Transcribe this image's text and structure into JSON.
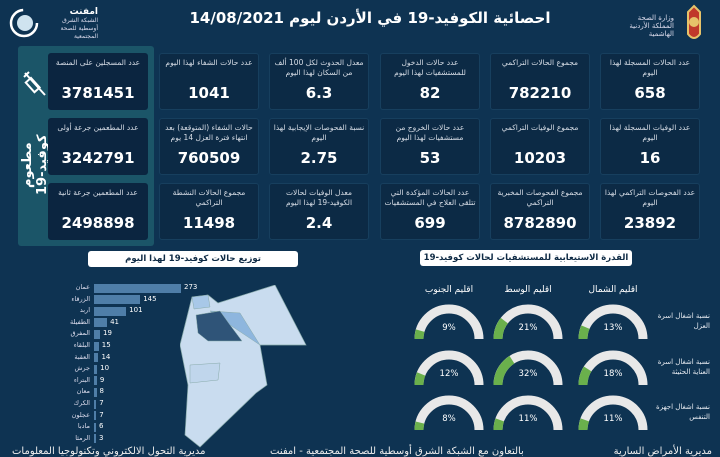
{
  "header": {
    "title": "احصائية الكوفيد-19 في الأردن ليوم",
    "date": "14/08/2021",
    "left_logo": {
      "name": "امفنت",
      "sub": "الشبكة الشرق أوسطية للصحة المجتمعية"
    },
    "right_logo": {
      "line1": "وزارة الصحة",
      "line2": "المملكة الأردنية الهاشمية"
    }
  },
  "vaccine": {
    "title": "مطعوم كوفيد-19",
    "icon": "syringe-icon",
    "cards": [
      {
        "label": "عدد المسجلين على المنصة",
        "value": "3781451"
      },
      {
        "label": "عدد المطعمين جرعة أولى",
        "value": "3242791"
      },
      {
        "label": "عدد المطعمين جرعة ثانية",
        "value": "2498898"
      }
    ]
  },
  "stats": [
    {
      "label": "عدد الحالات المسجلة لهذا اليوم",
      "value": "658"
    },
    {
      "label": "مجموع الحالات التراكمي",
      "value": "782210"
    },
    {
      "label": "عدد حالات الدخول للمستشفيات لهذا اليوم",
      "value": "82"
    },
    {
      "label": "معدل الحدوث لكل 100 ألف من السكان لهذا اليوم",
      "value": "6.3"
    },
    {
      "label": "عدد حالات الشفاء لهذا اليوم",
      "value": "1041"
    },
    {
      "label": "عدد الوفيات المسجلة لهذا اليوم",
      "value": "16"
    },
    {
      "label": "مجموع الوفيات التراكمي",
      "value": "10203"
    },
    {
      "label": "عدد حالات الخروج من مستشفيات لهذا اليوم",
      "value": "53"
    },
    {
      "label": "نسبة الفحوصات الإيجابية لهذا اليوم",
      "value": "2.75"
    },
    {
      "label": "حالات الشفاء (المتوقعة) بعد انتهاء فترة العزل 14 يوم",
      "value": "760509"
    },
    {
      "label": "عدد الفحوصات التراكمي لهذا اليوم",
      "value": "23892"
    },
    {
      "label": "مجموع الفحوصات المخبرية التراكمي",
      "value": "8782890"
    },
    {
      "label": "عدد الحالات المؤكدة التي تتلقى العلاج في المستشفيات",
      "value": "699"
    },
    {
      "label": "معدل الوفيات لحالات الكوفيد-19 لهذا اليوم",
      "value": "2.4"
    },
    {
      "label": "مجموع الحالات النشطة التراكمي",
      "value": "11498"
    }
  ],
  "distribution": {
    "title": "توزيع حالات كوفيد-19 لهذا اليوم"
  },
  "chart_data": {
    "type": "bar",
    "orientation": "horizontal",
    "title": "توزيع حالات كوفيد-19 لهذا اليوم",
    "categories": [
      "عمان",
      "الزرقاء",
      "اربد",
      "الطفيلة",
      "المفرق",
      "البلقاء",
      "العقبة",
      "جرش",
      "البتراء",
      "معان",
      "الكرك",
      "عجلون",
      "مادبا",
      "الرمثا"
    ],
    "values": [
      273,
      145,
      101,
      41,
      19,
      15,
      14,
      10,
      9,
      8,
      7,
      7,
      6,
      3
    ],
    "color": "#4f7ea8"
  },
  "capacity": {
    "title": "القدرة الاستيعابية للمستشفيات لحالات كوفيد-19",
    "regions": [
      "اقليم الشمال",
      "اقليم الوسط",
      "اقليم الجنوب"
    ],
    "rows": [
      {
        "label": "نسبة اشغال اسرة العزل",
        "values": [
          13,
          21,
          9
        ]
      },
      {
        "label": "نسبة اشغال اسرة العناية الحثيثة",
        "values": [
          18,
          32,
          12
        ]
      },
      {
        "label": "نسبة اشغال اجهزة التنفس",
        "values": [
          11,
          11,
          8
        ]
      }
    ],
    "fill_color": "#6ab04c",
    "track_color": "#e8e8e8"
  },
  "footer": [
    "مديرية الأمراض السارية",
    "بالتعاون مع الشبكة الشرق أوسطية للصحة المجتمعية - امفنت",
    "مديرية التحول الالكتروني وتكنولوجيا المعلومات"
  ]
}
